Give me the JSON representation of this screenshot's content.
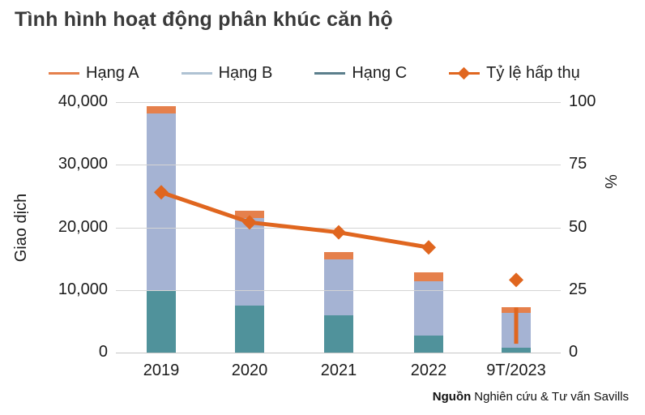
{
  "page": {
    "title": "Tình hình hoạt động phân khúc căn hộ"
  },
  "legend": {
    "items": [
      {
        "label": "Hạng A",
        "marker": "line",
        "color": "#E5804C"
      },
      {
        "label": "Hạng B",
        "marker": "line",
        "color": "#AFC2D3"
      },
      {
        "label": "Hạng C",
        "marker": "line",
        "color": "#5B7F8C"
      },
      {
        "label": "Tỷ lệ hấp thụ",
        "marker": "line-diamond",
        "color": "#E0661F"
      }
    ]
  },
  "source": {
    "prefix": "Nguồn",
    "text": "Nghiên cứu & Tư vấn Savills"
  },
  "colors": {
    "hang_a": "#E5804C",
    "hang_b": "#A5B3D3",
    "hang_c": "#50929B",
    "absorption_line": "#E0661F",
    "gridline": "#D4D4D4",
    "title_text": "#3A3A3A"
  },
  "chart_data": {
    "type": "bar",
    "subtype": "stacked-bars-with-line-on-secondary-axis",
    "title": "Tình hình hoạt động phân khúc căn hộ",
    "categories": [
      "2019",
      "2020",
      "2021",
      "2022",
      "9T/2023"
    ],
    "series": [
      {
        "name": "Hạng C",
        "color": "#50929B",
        "values": [
          9800,
          7500,
          6000,
          2700,
          800
        ]
      },
      {
        "name": "Hạng B",
        "color": "#A5B3D3",
        "values": [
          28400,
          14000,
          8900,
          8700,
          5500
        ]
      },
      {
        "name": "Hạng A",
        "color": "#E5804C",
        "values": [
          1100,
          1100,
          1200,
          1400,
          900
        ]
      }
    ],
    "stacked_totals": [
      39300,
      22600,
      16100,
      12800,
      7200
    ],
    "line": {
      "name": "Tỷ lệ hấp thụ",
      "color": "#E0661F",
      "unit": "%",
      "values": [
        64,
        52,
        48,
        42,
        29
      ],
      "connected_indices": [
        0,
        1,
        2,
        3
      ],
      "standalone_marker_index": 4,
      "whisker": {
        "category_index": 4,
        "from": 1400,
        "to": 7200
      }
    },
    "left_axis": {
      "label": "Giao dịch",
      "min": 0,
      "max": 40000,
      "tick_step": 10000,
      "ticks": [
        {
          "value": 40000,
          "label": "40,000"
        },
        {
          "value": 30000,
          "label": "30,000"
        },
        {
          "value": 20000,
          "label": "20,000"
        },
        {
          "value": 10000,
          "label": "10,000"
        },
        {
          "value": 0,
          "label": "0"
        }
      ]
    },
    "right_axis": {
      "label": "%",
      "min": 0,
      "max": 100,
      "tick_step": 25,
      "ticks": [
        {
          "value": 100,
          "label": "100"
        },
        {
          "value": 75,
          "label": "75"
        },
        {
          "value": 50,
          "label": "50"
        },
        {
          "value": 25,
          "label": "25"
        },
        {
          "value": 0,
          "label": "0"
        }
      ]
    },
    "grid": "horizontal-only",
    "legend_position": "top"
  }
}
